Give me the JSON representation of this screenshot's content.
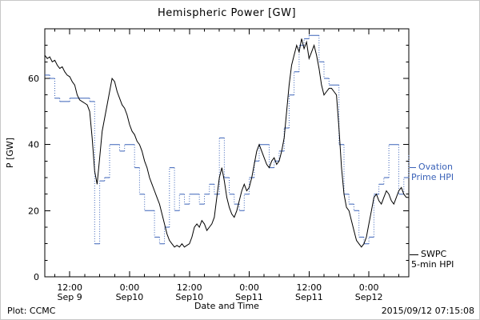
{
  "figure": {
    "title": "Hemispheric Power [GW]",
    "plot_credit": "Plot: CCMC",
    "timestamp": "2015/09/12 07:15:08"
  },
  "legend": {
    "ovation": {
      "line1": "Ovation",
      "line2": "Prime HPI",
      "color": "#3a62b8"
    },
    "swpc": {
      "line1": "SWPC",
      "line2": "5-min HPI",
      "color": "#000000"
    }
  },
  "chart_data": {
    "type": "line",
    "title": "Hemispheric Power [GW]",
    "xlabel": "Date and Time",
    "ylabel": "P [GW]",
    "x_unit": "hours since 2015-09-09 00:00 UT",
    "xlim": [
      7,
      80
    ],
    "ylim": [
      0,
      75
    ],
    "yticks": [
      0,
      20,
      40,
      60
    ],
    "y_minor_step": 5,
    "x_minor_step": 3,
    "grid": false,
    "legend_position": "right-outside",
    "xticks": [
      {
        "t": 12,
        "time": "12:00",
        "date": "Sep 9"
      },
      {
        "t": 24,
        "time": "0:00",
        "date": "Sep10"
      },
      {
        "t": 36,
        "time": "12:00",
        "date": "Sep10"
      },
      {
        "t": 48,
        "time": "0:00",
        "date": "Sep11"
      },
      {
        "t": 60,
        "time": "12:00",
        "date": "Sep11"
      },
      {
        "t": 72,
        "time": "0:00",
        "date": "Sep12"
      }
    ],
    "series": [
      {
        "name": "Ovation Prime HPI",
        "color": "#3a62b8",
        "style": "steps-dotted-risers",
        "x_start": 7,
        "x_step": 1,
        "y": [
          61,
          60,
          54,
          53,
          53,
          54,
          54,
          54,
          54,
          53,
          10,
          29,
          30,
          40,
          40,
          38,
          40,
          40,
          33,
          25,
          20,
          20,
          12,
          10,
          15,
          33,
          20,
          25,
          22,
          25,
          25,
          22,
          25,
          28,
          25,
          42,
          30,
          25,
          22,
          20,
          25,
          30,
          35,
          40,
          40,
          33,
          35,
          38,
          45,
          55,
          62,
          70,
          72,
          73,
          73,
          65,
          60,
          58,
          58,
          40,
          25,
          22,
          20,
          12,
          10,
          12,
          25,
          28,
          30,
          40,
          40,
          25,
          30,
          37
        ]
      },
      {
        "name": "SWPC 5-min HPI",
        "color": "#000000",
        "style": "line",
        "x_start": 7,
        "x_step": 0.5,
        "y": [
          67,
          66,
          66.5,
          65,
          65.5,
          64,
          63,
          63.5,
          62,
          61,
          60.5,
          59,
          58,
          55,
          53.5,
          53,
          52.5,
          52,
          50,
          42,
          32,
          28,
          36,
          44,
          48,
          52,
          56,
          60,
          59,
          56,
          54,
          52,
          51,
          49,
          46,
          44,
          43,
          41,
          40,
          38,
          35,
          33,
          30,
          28,
          26,
          24,
          22,
          19,
          16,
          13,
          11,
          10,
          9,
          9.5,
          9,
          10,
          9,
          9.5,
          10,
          12,
          15,
          16,
          15,
          17,
          16,
          14,
          15,
          16,
          18,
          24,
          30,
          33,
          29,
          24,
          21,
          19,
          18,
          20,
          23,
          26,
          28,
          26,
          27,
          30,
          34,
          38,
          40,
          38,
          36,
          34,
          33,
          35,
          36,
          34,
          35,
          38,
          42,
          50,
          58,
          64,
          67,
          70,
          68,
          72,
          69,
          71,
          66,
          68,
          70,
          67,
          63,
          58,
          55,
          56,
          57,
          57,
          56,
          55,
          45,
          33,
          25,
          21,
          20,
          17,
          14,
          11,
          10,
          9,
          10,
          12,
          16,
          20,
          24,
          25,
          23,
          22,
          24,
          26,
          25,
          23,
          22,
          24,
          26,
          27,
          25,
          24,
          24
        ]
      }
    ]
  }
}
